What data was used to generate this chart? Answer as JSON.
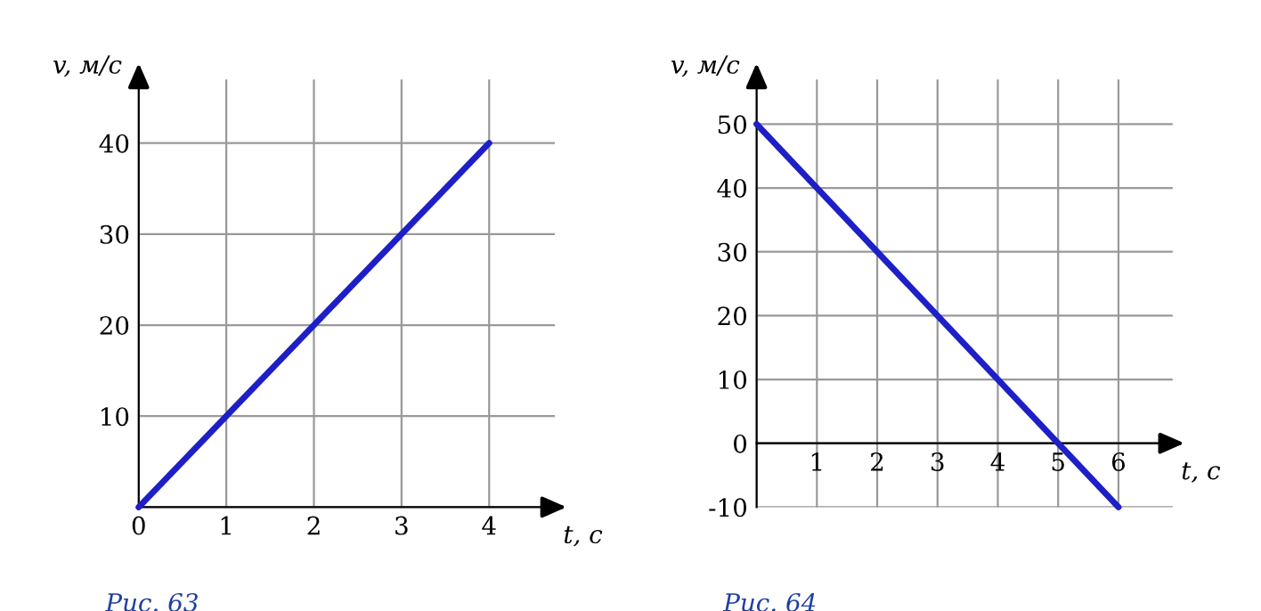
{
  "chart_data": [
    {
      "type": "line",
      "xlabel": "t, с",
      "ylabel": "v, м/с",
      "annotations": [
        "Рис. 63"
      ],
      "x": [
        0,
        4
      ],
      "series": [
        {
          "color": "#1f1fc8",
          "values": [
            0,
            40
          ]
        }
      ],
      "xlim": [
        0,
        4.75
      ],
      "ylim": [
        0,
        47
      ],
      "xticks": [
        0,
        1,
        2,
        3,
        4
      ],
      "yticks": [
        {
          "value": 0,
          "label": null
        },
        10,
        20,
        30,
        40
      ],
      "grid": true,
      "marker": "none",
      "line_style": "solid"
    },
    {
      "type": "line",
      "xlabel": "t, с",
      "ylabel": "v, м/с",
      "annotations": [
        "Рис. 64"
      ],
      "x": [
        0,
        6
      ],
      "series": [
        {
          "color": "#1f1fc8",
          "values": [
            50,
            -10
          ]
        }
      ],
      "xlim": [
        0,
        6.9
      ],
      "ylim": [
        -10,
        57
      ],
      "xticks": [
        {
          "value": 0,
          "label": null
        },
        1,
        2,
        3,
        4,
        5,
        6
      ],
      "yticks": [
        -10,
        0,
        10,
        20,
        30,
        40,
        50
      ],
      "grid": true,
      "marker": "none",
      "line_style": "solid"
    }
  ]
}
